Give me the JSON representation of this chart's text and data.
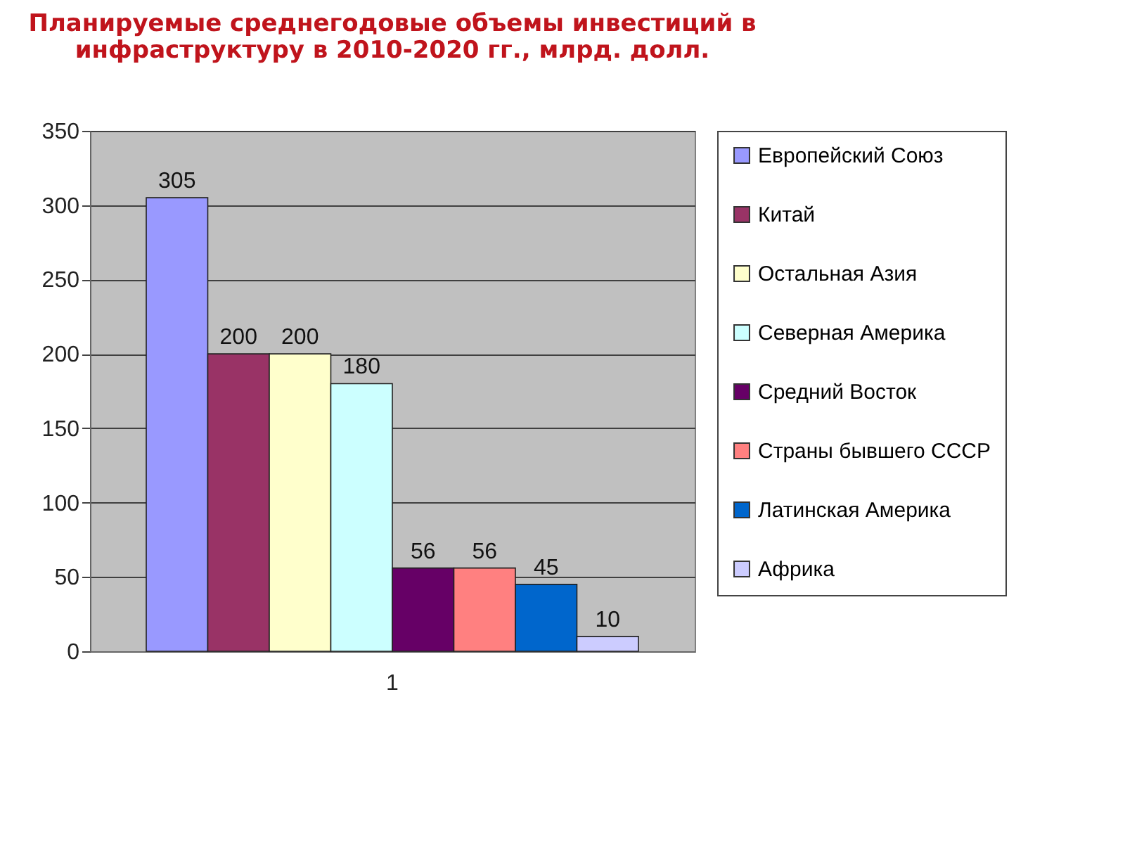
{
  "chart_data": {
    "type": "bar",
    "title": "Планируемые среднегодовые объемы инвестиций в инфраструктуру в 2010-2020 гг., млрд. долл.",
    "categories": [
      "1"
    ],
    "series": [
      {
        "name": "Европейский Союз",
        "color": "#9999ff",
        "values": [
          305
        ]
      },
      {
        "name": "Китай",
        "color": "#993366",
        "values": [
          200
        ]
      },
      {
        "name": "Остальная Азия",
        "color": "#ffffcc",
        "values": [
          200
        ]
      },
      {
        "name": "Северная Америка",
        "color": "#ccffff",
        "values": [
          180
        ]
      },
      {
        "name": "Средний Восток",
        "color": "#660066",
        "values": [
          56
        ]
      },
      {
        "name": "Страны бывшего СССР",
        "color": "#ff8080",
        "values": [
          56
        ]
      },
      {
        "name": "Латинская Америка",
        "color": "#0066cc",
        "values": [
          45
        ]
      },
      {
        "name": "Африка",
        "color": "#ccccff",
        "values": [
          10
        ]
      }
    ],
    "ylim": [
      0,
      350
    ],
    "yticks": [
      0,
      50,
      100,
      150,
      200,
      250,
      300,
      350
    ],
    "grid": "y",
    "legend": "right",
    "data_labels": true
  }
}
